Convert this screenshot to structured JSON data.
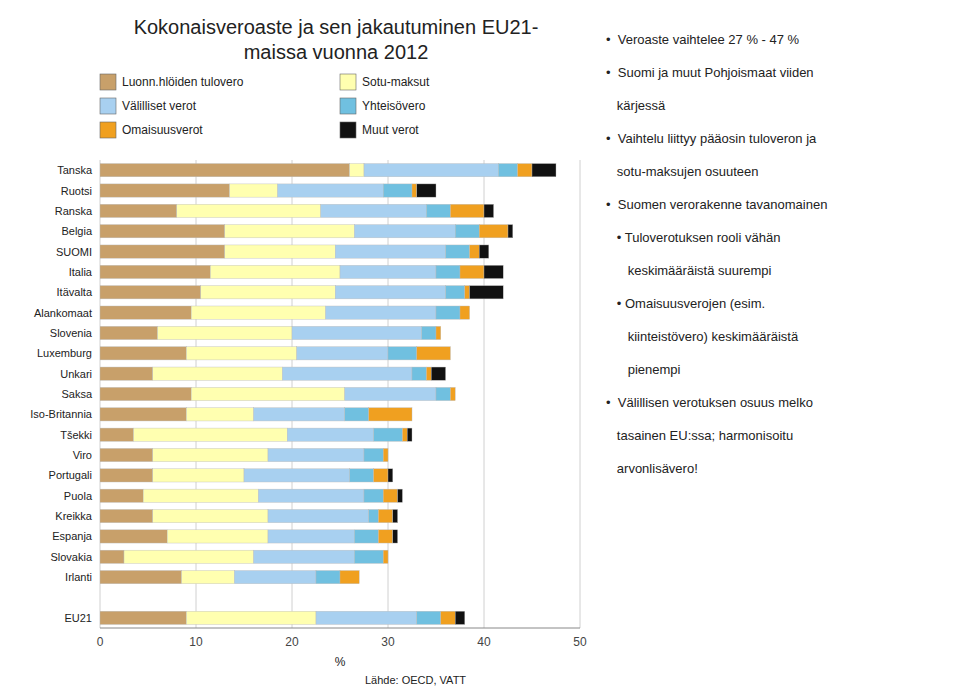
{
  "chart_data": {
    "type": "bar",
    "orientation": "horizontal",
    "stacked": true,
    "title": "Kokonaisveroaste ja sen jakautuminen EU21-\nmaissa vuonna 2012",
    "categories": [
      "Tanska",
      "Ruotsi",
      "Ranska",
      "Belgia",
      "SUOMI",
      "Italia",
      "Itävalta",
      "Alankomaat",
      "Slovenia",
      "Luxemburg",
      "Unkari",
      "Saksa",
      "Iso-Britannia",
      "Tšekki",
      "Viro",
      "Portugali",
      "Puola",
      "Kreikka",
      "Espanja",
      "Slovakia",
      "Irlanti",
      null,
      "EU21"
    ],
    "series": [
      {
        "name": "Luonn.hlöiden tulovero",
        "color": "#c8a06a",
        "values": [
          26.0,
          13.5,
          8.0,
          13.0,
          13.0,
          11.5,
          10.5,
          9.5,
          6.0,
          9.0,
          5.5,
          9.5,
          9.0,
          3.5,
          5.5,
          5.5,
          4.5,
          5.5,
          7.0,
          2.5,
          8.5,
          0.0,
          9.0
        ]
      },
      {
        "name": "Sotu-maksut",
        "color": "#ffffb0",
        "values": [
          1.5,
          5.0,
          15.0,
          13.5,
          11.5,
          13.5,
          14.0,
          14.0,
          14.0,
          11.5,
          13.5,
          16.0,
          7.0,
          16.0,
          12.0,
          9.5,
          12.0,
          12.0,
          10.5,
          13.5,
          5.5,
          0.0,
          13.5
        ]
      },
      {
        "name": "Välilliset verot",
        "color": "#a8d0f0",
        "values": [
          14.0,
          11.0,
          11.0,
          10.5,
          11.5,
          10.0,
          11.5,
          11.5,
          13.5,
          9.5,
          13.5,
          9.5,
          9.5,
          9.0,
          10.0,
          11.0,
          11.0,
          10.5,
          9.0,
          10.5,
          8.5,
          0.0,
          10.5
        ]
      },
      {
        "name": "Yhteisövero",
        "color": "#70c0e0",
        "values": [
          2.0,
          3.0,
          2.5,
          2.5,
          2.5,
          2.5,
          2.0,
          2.5,
          1.5,
          3.0,
          1.5,
          1.5,
          2.5,
          3.0,
          2.0,
          2.5,
          2.0,
          1.0,
          2.5,
          3.0,
          2.5,
          0.0,
          2.5
        ]
      },
      {
        "name": "Omaisuusverot",
        "color": "#f0a020",
        "values": [
          1.5,
          0.5,
          3.5,
          3.0,
          1.0,
          2.5,
          0.5,
          1.0,
          0.5,
          3.5,
          0.5,
          0.5,
          4.5,
          0.5,
          0.5,
          1.5,
          1.5,
          1.5,
          1.5,
          0.5,
          2.0,
          0.0,
          1.5
        ]
      },
      {
        "name": "Muut verot",
        "color": "#111111",
        "values": [
          2.5,
          2.0,
          1.0,
          0.5,
          1.0,
          2.0,
          3.5,
          0.0,
          0.0,
          0.0,
          1.5,
          0.0,
          0.0,
          0.5,
          0.0,
          0.5,
          0.5,
          0.5,
          0.5,
          0.0,
          0.0,
          0.0,
          1.0
        ]
      }
    ],
    "xlim": [
      0,
      50
    ],
    "xticks": [
      0,
      10,
      20,
      30,
      40,
      50
    ],
    "xlabel": "%",
    "grid": true,
    "legend": "top",
    "source": "Lähde: OECD, VATT",
    "annotations": [
      "•  Veroaste vaihtelee 27 % - 47 %",
      "•  Suomi ja muut Pohjoismaat viiden",
      "   kärjessä",
      "•  Vaihtelu liittyy pääosin tuloveron ja",
      "   sotu-maksujen osuuteen",
      "•  Suomen verorakenne tavanomainen",
      "   • Tuloverotuksen rooli vähän",
      "      keskimääräistä suurempi",
      "   • Omaisuusverojen (esim.",
      "      kiinteistövero) keskimääräistä",
      "      pienempi",
      "•  Välillisen verotuksen osuus melko",
      "   tasainen EU:ssa; harmonisoitu",
      "   arvonlisävero!"
    ]
  }
}
